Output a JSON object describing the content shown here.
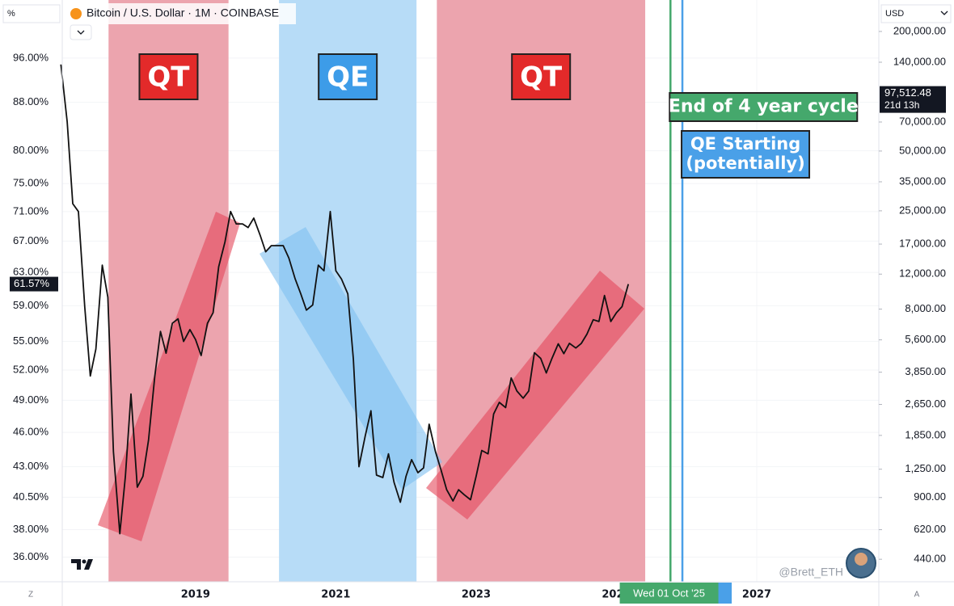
{
  "header": {
    "symbol": "Bitcoin / U.S. Dollar · 1M · COINBASE",
    "left_unit": "%",
    "right_unit": "USD",
    "corner_left": "Z",
    "corner_right": "A",
    "watermark": "@Brett_ETH"
  },
  "chart_data": {
    "type": "line",
    "color": "#111111",
    "x": [
      2017.08,
      2017.17,
      2017.25,
      2017.33,
      2017.42,
      2017.5,
      2017.58,
      2017.67,
      2017.75,
      2017.83,
      2017.92,
      2018,
      2018.08,
      2018.17,
      2018.25,
      2018.33,
      2018.42,
      2018.5,
      2018.58,
      2018.67,
      2018.75,
      2018.83,
      2018.92,
      2019,
      2019.08,
      2019.17,
      2019.25,
      2019.33,
      2019.42,
      2019.5,
      2019.58,
      2019.67,
      2019.75,
      2019.83,
      2019.92,
      2020,
      2020.08,
      2020.17,
      2020.25,
      2020.33,
      2020.42,
      2020.5,
      2020.58,
      2020.67,
      2020.75,
      2020.83,
      2020.92,
      2021,
      2021.08,
      2021.17,
      2021.25,
      2021.33,
      2021.42,
      2021.5,
      2021.58,
      2021.67,
      2021.75,
      2021.83,
      2021.92,
      2022,
      2022.08,
      2022.17,
      2022.25,
      2022.33,
      2022.42,
      2022.5,
      2022.58,
      2022.67,
      2022.75,
      2022.83,
      2022.92,
      2023,
      2023.08,
      2023.17,
      2023.25,
      2023.33,
      2023.42,
      2023.5,
      2023.58,
      2023.67,
      2023.75,
      2023.83,
      2023.92,
      2024,
      2024.08,
      2024.17,
      2024.25,
      2024.33,
      2024.42,
      2024.5,
      2024.58,
      2024.67,
      2024.75,
      2024.83,
      2024.92,
      2025,
      2025.08,
      2025.17
    ],
    "values": [
      94.8,
      84.7,
      72.1,
      71,
      58.9,
      51.4,
      54.2,
      63.9,
      60.0,
      44.3,
      37.7,
      42.2,
      49.6,
      41.3,
      42.2,
      45.3,
      51.4,
      56.1,
      53.75,
      57.0,
      57.5,
      55.0,
      56.3,
      55.2,
      53.5,
      57.0,
      58.2,
      63.7,
      66.9,
      71.0,
      69.3,
      69.3,
      68.8,
      70.1,
      67.8,
      65.6,
      66.4,
      66.4,
      66.4,
      64.8,
      62.2,
      60.4,
      58.5,
      59.1,
      63.9,
      63.2,
      71.0,
      63.2,
      62.2,
      60.4,
      53.1,
      43.0,
      45.7,
      48.0,
      42.3,
      42.1,
      44.1,
      41.7,
      40.1,
      42.2,
      43.6,
      42.5,
      42.9,
      46.75,
      44.3,
      42.7,
      41.1,
      40.2,
      41.1,
      40.7,
      40.3,
      42.2,
      44.4,
      44.1,
      47.7,
      48.8,
      48.3,
      51.2,
      49.9,
      49.2,
      49.9,
      53.8,
      53.2,
      51.7,
      53.2,
      54.75,
      53.7,
      54.8,
      54.3,
      54.8,
      55.8,
      57.4,
      57.2,
      60.2,
      57.2,
      58.2,
      58.9,
      61.57
    ],
    "log_scale": true,
    "y2_log_scale": true,
    "grid": true,
    "xlim": [
      2017.1,
      2028.74
    ],
    "xticks": [
      2019,
      2021,
      2023,
      2025,
      2027
    ],
    "ylim": [
      34.3,
      107.6
    ],
    "yticks": [
      {
        "value": 96,
        "label": "96.00%"
      },
      {
        "value": 88,
        "label": "88.00%"
      },
      {
        "value": 80,
        "label": "80.00%"
      },
      {
        "value": 75,
        "label": "75.00%"
      },
      {
        "value": 71,
        "label": "71.00%"
      },
      {
        "value": 67,
        "label": "67.00%"
      },
      {
        "value": 63,
        "label": "63.00%"
      },
      {
        "value": 59,
        "label": "59.00%"
      },
      {
        "value": 55,
        "label": "55.00%"
      },
      {
        "value": 52,
        "label": "52.00%"
      },
      {
        "value": 49,
        "label": "49.00%"
      },
      {
        "value": 46,
        "label": "46.00%"
      },
      {
        "value": 43,
        "label": "43.00%"
      },
      {
        "value": 40.5,
        "label": "40.50%"
      },
      {
        "value": 38,
        "label": "38.00%"
      },
      {
        "value": 36,
        "label": "36.00%"
      }
    ],
    "y2lim": [
      339,
      288000
    ],
    "y2ticks": [
      {
        "value": 200000,
        "label": "200,000.00"
      },
      {
        "value": 140000,
        "label": "140,000.00"
      },
      {
        "value": 70000,
        "label": "70,000.00"
      },
      {
        "value": 50000,
        "label": "50,000.00"
      },
      {
        "value": 35000,
        "label": "35,000.00"
      },
      {
        "value": 25000,
        "label": "25,000.00"
      },
      {
        "value": 17000,
        "label": "17,000.00"
      },
      {
        "value": 12000,
        "label": "12,000.00"
      },
      {
        "value": 8000,
        "label": "8,000.00"
      },
      {
        "value": 5600,
        "label": "5,600.00"
      },
      {
        "value": 3850,
        "label": "3,850.00"
      },
      {
        "value": 2650,
        "label": "2,650.00"
      },
      {
        "value": 1850,
        "label": "1,850.00"
      },
      {
        "value": 1250,
        "label": "1,250.00"
      },
      {
        "value": 900,
        "label": "900.00"
      },
      {
        "value": 620,
        "label": "620.00"
      },
      {
        "value": 440,
        "label": "440.00"
      }
    ],
    "bands": [
      {
        "start": 2017.76,
        "end": 2019.47,
        "label": "QT",
        "color": "#eca4ae",
        "label_color": "#e32a2a"
      },
      {
        "start": 2020.19,
        "end": 2022.15,
        "label": "QE",
        "color": "#b7dcf7",
        "label_color": "#3d9ce8"
      },
      {
        "start": 2022.44,
        "end": 2025.41,
        "label": "QT",
        "color": "#eca4ae",
        "label_color": "#e32a2a"
      }
    ],
    "vlines": [
      {
        "x": 2025.77,
        "color": "#45a86c",
        "label": [
          "End of 4 year cycle"
        ]
      },
      {
        "x": 2025.94,
        "color": "#4aa0e8",
        "label": [
          "QE Starting",
          "(potentially)"
        ]
      }
    ],
    "last_value_label": "61.57%",
    "price_label": {
      "value": 97512.48,
      "label": "97,512.48",
      "countdown": "21d 13h"
    },
    "crosshair": {
      "x": 2025.75,
      "label": "Wed 01 Oct '25"
    }
  }
}
